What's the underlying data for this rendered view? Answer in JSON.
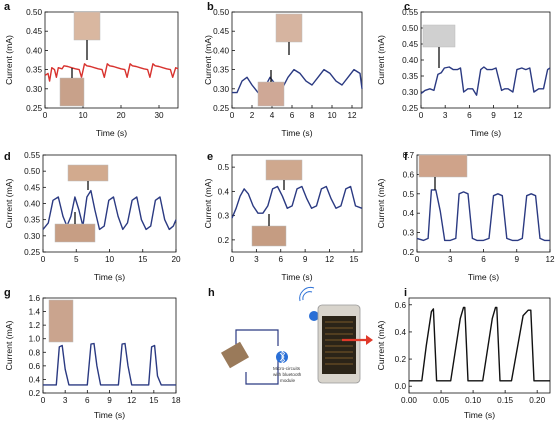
{
  "colors": {
    "red_trace": "#d8322e",
    "blue_trace": "#2b3a82",
    "black_trace": "#111111",
    "axis": "#111111",
    "bluetooth": "#2a6fd6",
    "arrow": "#e03a2a"
  },
  "panels": [
    {
      "label": "a",
      "xlabel": "Time (s)",
      "ylabel": "Current (mA)"
    },
    {
      "label": "b",
      "xlabel": "Time (s)",
      "ylabel": "Current (mA)"
    },
    {
      "label": "c",
      "xlabel": "Time (s)",
      "ylabel": "Current (mA)"
    },
    {
      "label": "d",
      "xlabel": "Time (s)",
      "ylabel": "Current (mA)"
    },
    {
      "label": "e",
      "xlabel": "Time (s)",
      "ylabel": "Current (mA)"
    },
    {
      "label": "f",
      "xlabel": "Time (s)",
      "ylabel": "Current (mA)"
    },
    {
      "label": "g",
      "xlabel": "Time (s)",
      "ylabel": "Current (mA)"
    },
    {
      "label": "h"
    },
    {
      "label": "i",
      "xlabel": "Time (s)",
      "ylabel": "Current (mA)"
    }
  ],
  "diagram_h": {
    "module_caption": [
      "Micro-circuits",
      "with bluetooth",
      "module"
    ],
    "icon": "bluetooth-icon"
  },
  "chart_data": [
    {
      "panel": "a",
      "type": "line",
      "xlim": [
        0,
        35
      ],
      "ylim": [
        0.25,
        0.5
      ],
      "xticks": [
        0,
        10,
        20,
        30
      ],
      "yticks": [
        0.25,
        0.3,
        0.35,
        0.4,
        0.45,
        0.5
      ],
      "series": [
        {
          "color": "red",
          "x": [
            0,
            0.8,
            1.2,
            1.8,
            2.5,
            3,
            3.5,
            4.5,
            5,
            6,
            7,
            8,
            9,
            9.6,
            10.4,
            11,
            12,
            13,
            14,
            15,
            15.6,
            16.4,
            17,
            18,
            19,
            20,
            21,
            21.6,
            22.4,
            23,
            24,
            25,
            26,
            27,
            27.6,
            28.4,
            29,
            30,
            31,
            32,
            33,
            33.6,
            34.4,
            35
          ],
          "y": [
            0.335,
            0.34,
            0.32,
            0.355,
            0.35,
            0.33,
            0.355,
            0.352,
            0.36,
            0.358,
            0.355,
            0.352,
            0.35,
            0.33,
            0.365,
            0.36,
            0.358,
            0.355,
            0.352,
            0.35,
            0.33,
            0.365,
            0.36,
            0.358,
            0.355,
            0.352,
            0.35,
            0.33,
            0.365,
            0.36,
            0.358,
            0.355,
            0.352,
            0.35,
            0.33,
            0.365,
            0.36,
            0.358,
            0.355,
            0.352,
            0.35,
            0.33,
            0.355,
            0.352
          ]
        }
      ]
    },
    {
      "panel": "b",
      "type": "line",
      "xlim": [
        0,
        13
      ],
      "ylim": [
        0.25,
        0.5
      ],
      "xticks": [
        0,
        2,
        4,
        6,
        8,
        10,
        12
      ],
      "yticks": [
        0.25,
        0.3,
        0.35,
        0.4,
        0.45,
        0.5
      ],
      "series": [
        {
          "color": "blue",
          "x": [
            0,
            0.5,
            1,
            1.5,
            2,
            2.6,
            3.2,
            3.8,
            4.4,
            5,
            5.6,
            6.2,
            6.8,
            7.4,
            8,
            8.6,
            9.2,
            9.8,
            10.4,
            11,
            11.6,
            12.2,
            12.8,
            13
          ],
          "y": [
            0.29,
            0.29,
            0.32,
            0.33,
            0.31,
            0.29,
            0.3,
            0.33,
            0.31,
            0.3,
            0.33,
            0.35,
            0.34,
            0.32,
            0.31,
            0.33,
            0.35,
            0.34,
            0.32,
            0.31,
            0.33,
            0.35,
            0.34,
            0.3
          ]
        }
      ]
    },
    {
      "panel": "c",
      "type": "line",
      "xlim": [
        0,
        16
      ],
      "ylim": [
        0.25,
        0.55
      ],
      "xticks": [
        0,
        3,
        6,
        9,
        12
      ],
      "yticks": [
        0.25,
        0.3,
        0.35,
        0.4,
        0.45,
        0.5,
        0.55
      ],
      "series": [
        {
          "color": "blue",
          "x": [
            0,
            0.5,
            1.1,
            1.6,
            2.1,
            2.5,
            2.9,
            3.5,
            4,
            4.5,
            4.9,
            5.3,
            5.8,
            6.4,
            6.9,
            7.4,
            7.8,
            8.2,
            8.8,
            9.3,
            10,
            10.4,
            10.8,
            11.4,
            11.9,
            12.5,
            13,
            13.5,
            14,
            14.6,
            15.2,
            15.7,
            16
          ],
          "y": [
            0.295,
            0.305,
            0.31,
            0.305,
            0.355,
            0.36,
            0.375,
            0.378,
            0.37,
            0.37,
            0.375,
            0.3,
            0.31,
            0.31,
            0.29,
            0.37,
            0.378,
            0.37,
            0.37,
            0.375,
            0.305,
            0.31,
            0.31,
            0.3,
            0.37,
            0.375,
            0.37,
            0.375,
            0.3,
            0.31,
            0.31,
            0.37,
            0.375
          ]
        }
      ]
    },
    {
      "panel": "d",
      "type": "line",
      "xlim": [
        0,
        20
      ],
      "ylim": [
        0.25,
        0.55
      ],
      "xticks": [
        0,
        5,
        10,
        15,
        20
      ],
      "yticks": [
        0.25,
        0.3,
        0.35,
        0.4,
        0.45,
        0.5,
        0.55
      ],
      "series": [
        {
          "color": "blue",
          "x": [
            0,
            0.8,
            1.5,
            2.3,
            3,
            3.6,
            4.2,
            4.8,
            5.4,
            6,
            6.6,
            7.2,
            7.8,
            8.5,
            9.2,
            9.9,
            10.6,
            11.3,
            12,
            12.7,
            13.4,
            14.1,
            14.8,
            15.5,
            16.2,
            16.9,
            17.6,
            18.3,
            19,
            19.6,
            20
          ],
          "y": [
            0.32,
            0.34,
            0.41,
            0.42,
            0.36,
            0.33,
            0.36,
            0.42,
            0.38,
            0.33,
            0.42,
            0.44,
            0.38,
            0.32,
            0.33,
            0.41,
            0.42,
            0.36,
            0.32,
            0.34,
            0.41,
            0.42,
            0.35,
            0.32,
            0.33,
            0.41,
            0.42,
            0.35,
            0.32,
            0.33,
            0.35
          ]
        }
      ]
    },
    {
      "panel": "e",
      "type": "line",
      "xlim": [
        0,
        16
      ],
      "ylim": [
        0.15,
        0.55
      ],
      "xticks": [
        0,
        3,
        6,
        9,
        12,
        15
      ],
      "yticks": [
        0.2,
        0.3,
        0.4,
        0.5
      ],
      "series": [
        {
          "color": "blue",
          "x": [
            0,
            0.5,
            1,
            1.5,
            2,
            2.6,
            3.2,
            3.8,
            4.4,
            5,
            5.6,
            6.2,
            6.8,
            7.4,
            8,
            8.6,
            9.2,
            9.8,
            10.4,
            11,
            11.6,
            12.2,
            12.8,
            13.4,
            14,
            14.6,
            15.2,
            16
          ],
          "y": [
            0.29,
            0.33,
            0.38,
            0.41,
            0.39,
            0.34,
            0.31,
            0.31,
            0.34,
            0.41,
            0.42,
            0.38,
            0.33,
            0.34,
            0.41,
            0.42,
            0.37,
            0.33,
            0.34,
            0.41,
            0.42,
            0.37,
            0.33,
            0.34,
            0.41,
            0.42,
            0.34,
            0.33
          ]
        }
      ]
    },
    {
      "panel": "f",
      "type": "line",
      "xlim": [
        0,
        12
      ],
      "ylim": [
        0.2,
        0.7
      ],
      "xticks": [
        0,
        3,
        6,
        9,
        12
      ],
      "yticks": [
        0.2,
        0.3,
        0.4,
        0.5,
        0.6,
        0.7
      ],
      "series": [
        {
          "color": "blue",
          "x": [
            0,
            0.6,
            1,
            1.3,
            1.7,
            2.1,
            2.5,
            3,
            3.5,
            3.8,
            4.2,
            4.6,
            5,
            5.4,
            6,
            6.5,
            6.9,
            7.3,
            7.7,
            8.1,
            8.6,
            9.1,
            9.5,
            9.9,
            10.3,
            10.7,
            11.1,
            11.5,
            12
          ],
          "y": [
            0.27,
            0.26,
            0.27,
            0.52,
            0.52,
            0.41,
            0.26,
            0.26,
            0.27,
            0.5,
            0.51,
            0.5,
            0.27,
            0.26,
            0.26,
            0.27,
            0.49,
            0.5,
            0.49,
            0.27,
            0.26,
            0.26,
            0.27,
            0.49,
            0.5,
            0.49,
            0.27,
            0.26,
            0.26
          ]
        }
      ]
    },
    {
      "panel": "g",
      "type": "line",
      "xlim": [
        0,
        18
      ],
      "ylim": [
        0.2,
        1.6
      ],
      "xticks": [
        0,
        3,
        6,
        9,
        12,
        15,
        18
      ],
      "yticks": [
        0.2,
        0.4,
        0.6,
        0.8,
        1.0,
        1.2,
        1.4,
        1.6
      ],
      "series": [
        {
          "color": "blue",
          "x": [
            0,
            1,
            1.8,
            2.2,
            2.6,
            3,
            3.5,
            4,
            5,
            6,
            6.5,
            6.9,
            7.3,
            7.8,
            8.3,
            9.3,
            10.2,
            10.7,
            11.1,
            11.5,
            12,
            12.5,
            13.5,
            14.3,
            14.7,
            15.1,
            15.5,
            16,
            17,
            18
          ],
          "y": [
            0.32,
            0.32,
            0.32,
            0.88,
            0.9,
            0.55,
            0.32,
            0.32,
            0.32,
            0.32,
            0.92,
            0.93,
            0.6,
            0.32,
            0.32,
            0.32,
            0.32,
            0.92,
            0.93,
            0.6,
            0.32,
            0.32,
            0.32,
            0.32,
            0.88,
            0.9,
            0.45,
            0.32,
            0.32,
            0.32
          ]
        }
      ]
    },
    {
      "panel": "i",
      "type": "line",
      "xlim": [
        0,
        0.22
      ],
      "ylim": [
        -0.05,
        0.65
      ],
      "xticks": [
        0.0,
        0.05,
        0.1,
        0.15,
        0.2
      ],
      "yticks": [
        0.0,
        0.2,
        0.4,
        0.6
      ],
      "series": [
        {
          "color": "black",
          "x": [
            0,
            0.02,
            0.027,
            0.035,
            0.038,
            0.043,
            0.065,
            0.08,
            0.085,
            0.087,
            0.092,
            0.115,
            0.13,
            0.135,
            0.137,
            0.142,
            0.16,
            0.178,
            0.186,
            0.19,
            0.195,
            0.22
          ],
          "y": [
            0.04,
            0.04,
            0.3,
            0.55,
            0.57,
            0.04,
            0.04,
            0.5,
            0.58,
            0.58,
            0.04,
            0.04,
            0.5,
            0.58,
            0.58,
            0.04,
            0.04,
            0.52,
            0.56,
            0.56,
            0.04,
            0.04
          ]
        }
      ]
    }
  ]
}
